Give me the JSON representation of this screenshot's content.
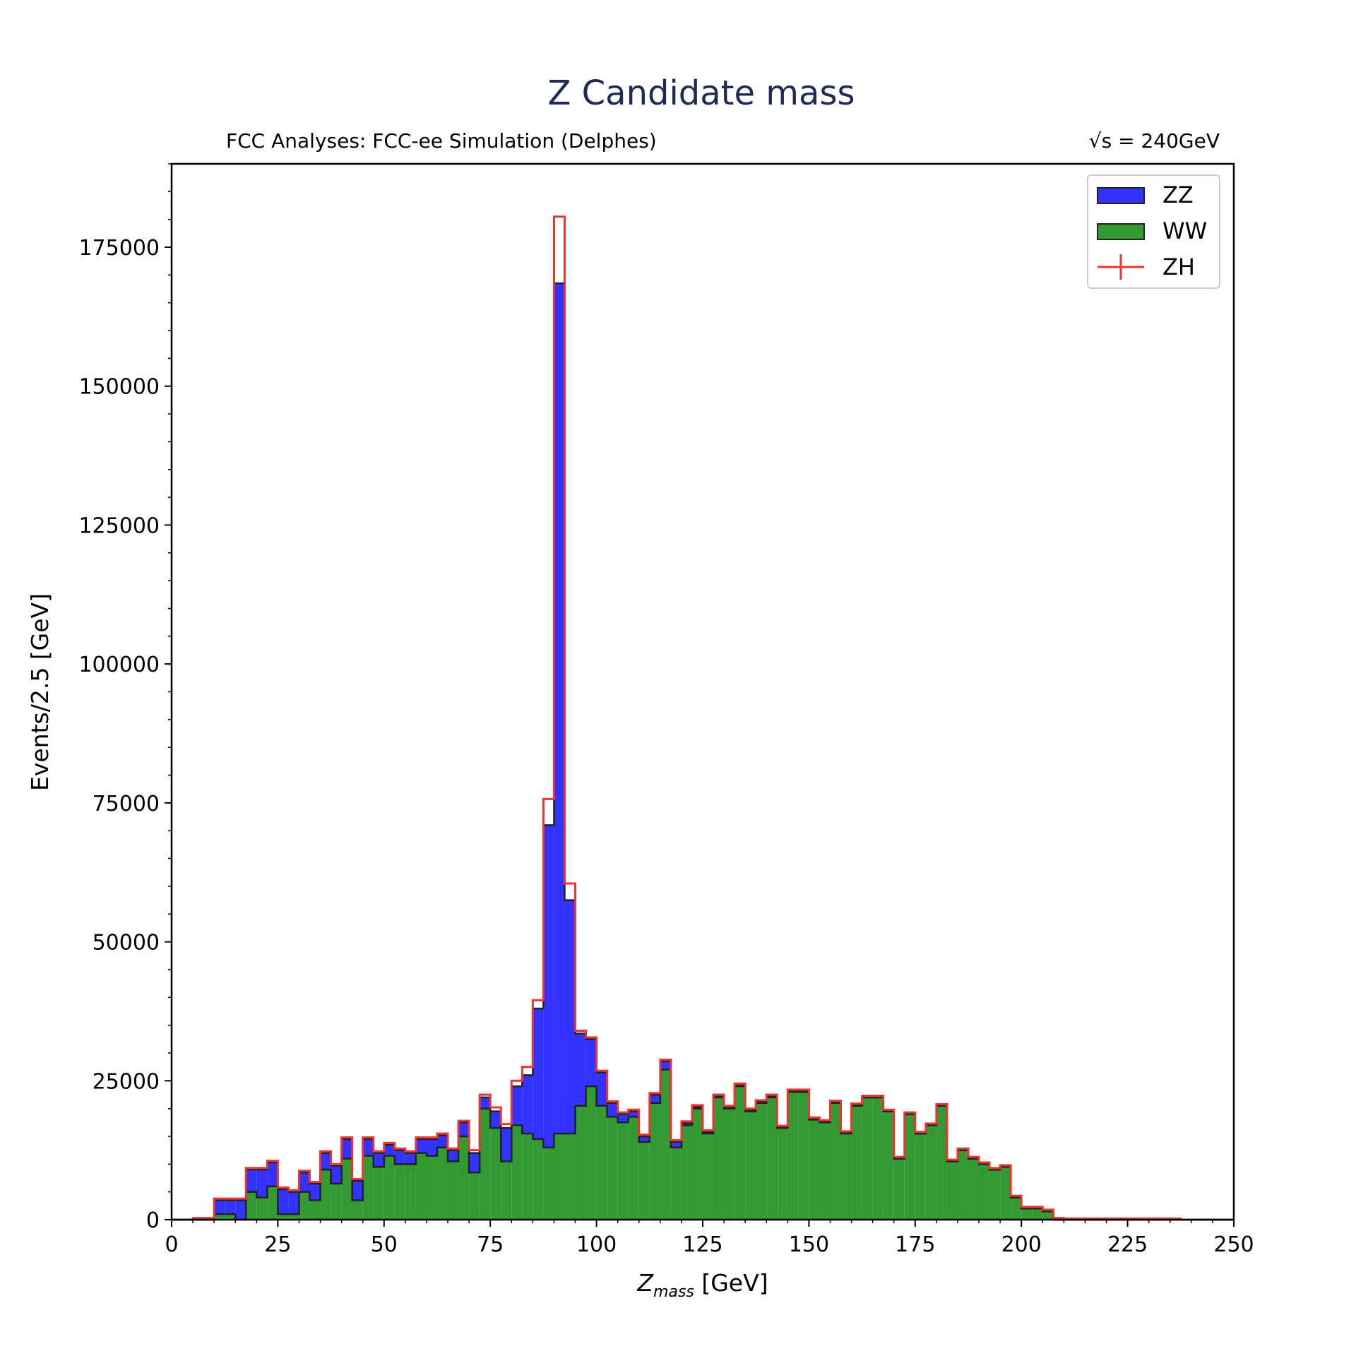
{
  "chart_data": {
    "type": "bar",
    "title": "Z Candidate mass",
    "subtitle_left": "FCC Analyses: FCC-ee Simulation (Delphes)",
    "subtitle_right": "√s = 240GeV",
    "xlabel": "Z_mass [GeV]",
    "xlabel_main": "Z",
    "xlabel_sub": "mass",
    "xlabel_unit": " [GeV]",
    "ylabel": "Events/2.5 [GeV]",
    "xlim": [
      0,
      250
    ],
    "ylim": [
      0,
      190000
    ],
    "bin_width": 2.5,
    "x_ticks": [
      0,
      25,
      50,
      75,
      100,
      125,
      150,
      175,
      200,
      225,
      250
    ],
    "y_ticks": [
      0,
      25000,
      50000,
      75000,
      100000,
      125000,
      150000,
      175000
    ],
    "stacked": true,
    "legend_position": "top-right",
    "colors": {
      "ZZ": "#3333ff",
      "WW": "#339933",
      "ZH": "#ee3333",
      "edge": "#222222"
    },
    "bin_edges_start": 0,
    "series": [
      {
        "name": "WW",
        "values": [
          0,
          0,
          0,
          0,
          1000,
          1000,
          0,
          5000,
          4000,
          6000,
          1000,
          1000,
          5000,
          3500,
          9000,
          6500,
          11000,
          3500,
          11500,
          9500,
          11500,
          10000,
          10000,
          12000,
          11500,
          13000,
          10500,
          15000,
          8500,
          20000,
          16500,
          10500,
          17000,
          15500,
          14500,
          13000,
          15500,
          15500,
          20500,
          24000,
          20500,
          18500,
          17500,
          18500,
          14000,
          21000,
          27000,
          13000,
          17000,
          20000,
          15500,
          22000,
          20000,
          24000,
          19500,
          21000,
          22000,
          16500,
          23000,
          23000,
          18000,
          17500,
          21000,
          15500,
          20500,
          22000,
          22000,
          19500,
          11000,
          19000,
          15500,
          17000,
          20500,
          10500,
          12500,
          11000,
          10000,
          9000,
          9500,
          4000,
          2000,
          2000,
          1500,
          0,
          0,
          0,
          0,
          0,
          0,
          0,
          0,
          0,
          0,
          0,
          0,
          0,
          0,
          0,
          0,
          0
        ]
      },
      {
        "name": "ZZ",
        "values": [
          0,
          0,
          0,
          0,
          2500,
          2500,
          3500,
          4000,
          5000,
          4300,
          4500,
          4000,
          3500,
          3000,
          3000,
          3200,
          3500,
          3500,
          3000,
          2500,
          2000,
          2500,
          2000,
          2500,
          3000,
          2200,
          2000,
          2500,
          3500,
          2000,
          3000,
          6000,
          7000,
          10500,
          23500,
          58000,
          153000,
          42000,
          13000,
          8500,
          6000,
          2500,
          1500,
          1000,
          1000,
          1500,
          1500,
          1000,
          400,
          300,
          300,
          200,
          200,
          200,
          200,
          200,
          200,
          100,
          100,
          100,
          100,
          100,
          100,
          100,
          100,
          0,
          0,
          0,
          0,
          0,
          0,
          0,
          0,
          0,
          0,
          0,
          0,
          0,
          0,
          0,
          0,
          0,
          0,
          0,
          0,
          0,
          0,
          0,
          0,
          0,
          0,
          0,
          0,
          0,
          0,
          0,
          0,
          0,
          0,
          0
        ]
      },
      {
        "name": "ZH",
        "values": [
          0,
          0,
          300,
          300,
          300,
          300,
          300,
          300,
          300,
          300,
          300,
          300,
          300,
          300,
          300,
          300,
          300,
          300,
          300,
          300,
          300,
          300,
          300,
          300,
          300,
          300,
          300,
          300,
          500,
          500,
          700,
          700,
          1000,
          1500,
          1500,
          4700,
          12000,
          3000,
          500,
          300,
          300,
          300,
          300,
          300,
          300,
          300,
          300,
          300,
          300,
          300,
          300,
          300,
          300,
          300,
          300,
          300,
          300,
          300,
          300,
          300,
          300,
          300,
          300,
          300,
          300,
          300,
          300,
          300,
          300,
          300,
          300,
          300,
          300,
          300,
          300,
          300,
          300,
          300,
          300,
          300,
          300,
          300,
          300,
          300,
          200,
          200,
          200,
          200,
          200,
          200,
          200,
          200,
          200,
          200,
          200,
          0,
          0,
          0,
          0,
          0
        ]
      }
    ]
  },
  "legend": {
    "items": [
      {
        "label": "ZZ",
        "kind": "patch",
        "color": "#3333ff"
      },
      {
        "label": "WW",
        "kind": "patch",
        "color": "#339933"
      },
      {
        "label": "ZH",
        "kind": "errorbar",
        "color": "#ee3333"
      }
    ]
  }
}
